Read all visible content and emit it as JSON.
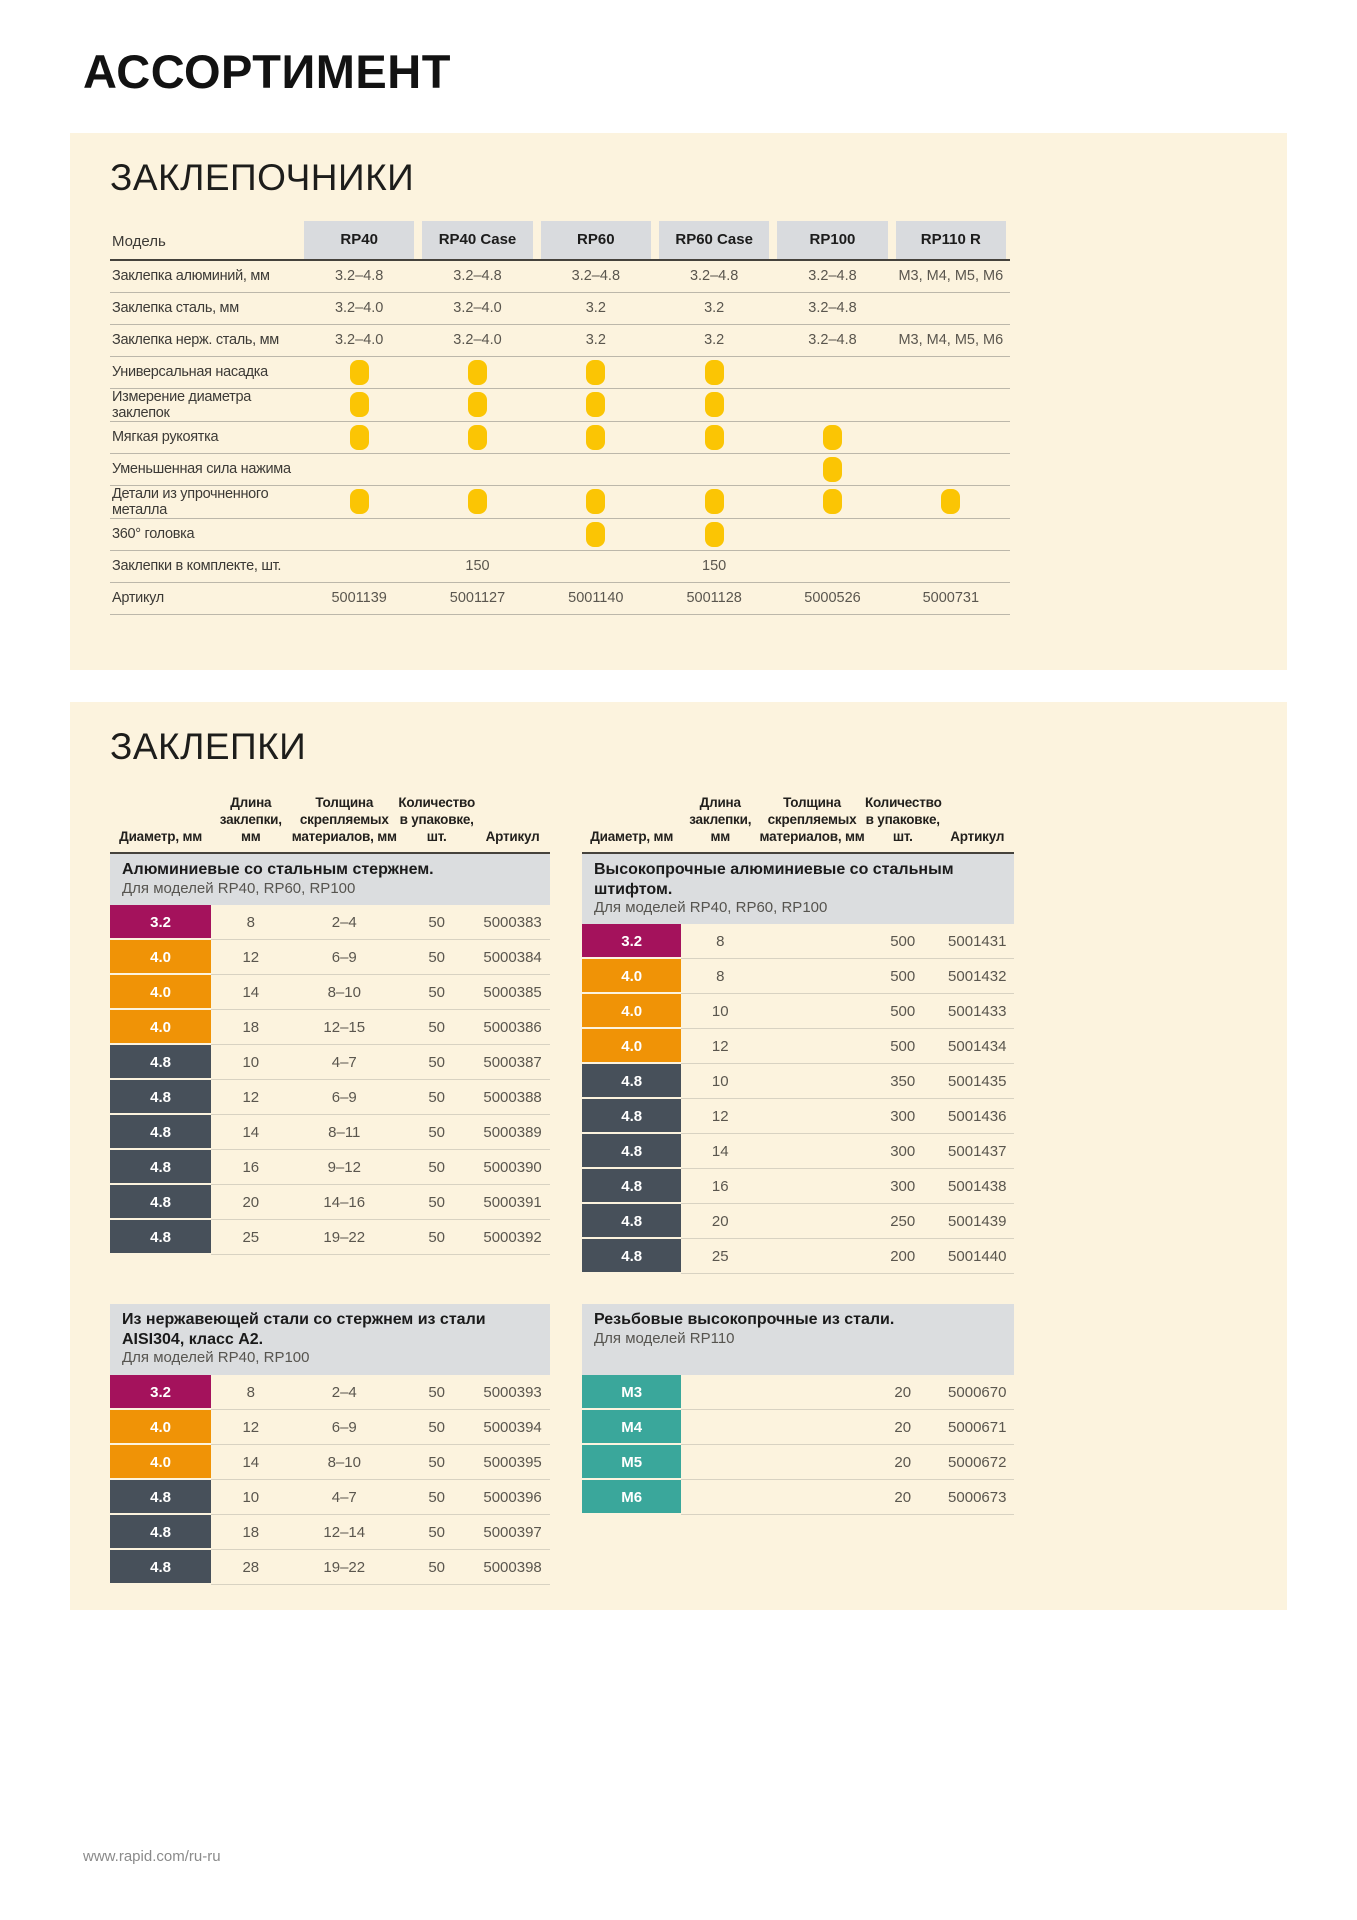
{
  "page": {
    "title": "АССОРТИМЕНТ",
    "footer_link": "www.rapid.com/ru-ru"
  },
  "colors": {
    "panel_bg": "#FCF3DE",
    "model_chip_bg": "#D9DBDE",
    "section_bar_bg": "#DBDDDF",
    "dot_yellow": "#FBC504",
    "diameter_3_2": "#A4125C",
    "diameter_4_0": "#F09306",
    "diameter_4_8": "#47505A",
    "diameter_m": "#3AA79B"
  },
  "riveters": {
    "section_title": "ЗАКЛЕПОЧНИКИ",
    "model_column_label": "Модель",
    "models": [
      "RP40",
      "RP40 Case",
      "RP60",
      "RP60 Case",
      "RP100",
      "RP110 R"
    ],
    "rows": [
      {
        "label": "Заклепка алюминий, мм",
        "type": "text",
        "values": [
          "3.2–4.8",
          "3.2–4.8",
          "3.2–4.8",
          "3.2–4.8",
          "3.2–4.8",
          "M3, M4, M5, M6"
        ]
      },
      {
        "label": "Заклепка сталь, мм",
        "type": "text",
        "values": [
          "3.2–4.0",
          "3.2–4.0",
          "3.2",
          "3.2",
          "3.2–4.8",
          ""
        ]
      },
      {
        "label": "Заклепка нерж. сталь, мм",
        "type": "text",
        "values": [
          "3.2–4.0",
          "3.2–4.0",
          "3.2",
          "3.2",
          "3.2–4.8",
          "M3, M4, M5, M6"
        ]
      },
      {
        "label": "Универсальная насадка",
        "type": "dot",
        "values": [
          true,
          true,
          true,
          true,
          false,
          false
        ]
      },
      {
        "label": "Измерение диаметра заклепок",
        "type": "dot",
        "values": [
          true,
          true,
          true,
          true,
          false,
          false
        ]
      },
      {
        "label": "Мягкая рукоятка",
        "type": "dot",
        "values": [
          true,
          true,
          true,
          true,
          true,
          false
        ]
      },
      {
        "label": "Уменьшенная сила нажима",
        "type": "dot",
        "values": [
          false,
          false,
          false,
          false,
          true,
          false
        ]
      },
      {
        "label": "Детали из упрочненного металла",
        "type": "dot",
        "values": [
          true,
          true,
          true,
          true,
          true,
          true
        ]
      },
      {
        "label": "360° головка",
        "type": "dot",
        "values": [
          false,
          false,
          true,
          true,
          false,
          false
        ]
      },
      {
        "label": "Заклепки в комплекте, шт.",
        "type": "text",
        "values": [
          "",
          "150",
          "",
          "150",
          "",
          ""
        ]
      },
      {
        "label": "Артикул",
        "type": "text",
        "values": [
          "5001139",
          "5001127",
          "5001140",
          "5001128",
          "5000526",
          "5000731"
        ]
      }
    ]
  },
  "rivets": {
    "section_title": "ЗАКЛЕПКИ",
    "column_headers": [
      "Диаметр, мм",
      "Длина\nзаклепки, мм",
      "Толщина\nскрепляемых\nматериалов, мм",
      "Количество\nв упаковке, шт.",
      "Артикул"
    ],
    "tables": [
      {
        "title": "Алюминиевые со стальным стержнем.",
        "subtitle": "Для моделей RP40, RP60, RP100",
        "show_headers": true,
        "rows": [
          {
            "diameter": "3.2",
            "color": "d32",
            "length": "8",
            "thickness": "2–4",
            "qty": "50",
            "sku": "5000383"
          },
          {
            "diameter": "4.0",
            "color": "d40",
            "length": "12",
            "thickness": "6–9",
            "qty": "50",
            "sku": "5000384"
          },
          {
            "diameter": "4.0",
            "color": "d40",
            "length": "14",
            "thickness": "8–10",
            "qty": "50",
            "sku": "5000385"
          },
          {
            "diameter": "4.0",
            "color": "d40",
            "length": "18",
            "thickness": "12–15",
            "qty": "50",
            "sku": "5000386"
          },
          {
            "diameter": "4.8",
            "color": "d48",
            "length": "10",
            "thickness": "4–7",
            "qty": "50",
            "sku": "5000387"
          },
          {
            "diameter": "4.8",
            "color": "d48",
            "length": "12",
            "thickness": "6–9",
            "qty": "50",
            "sku": "5000388"
          },
          {
            "diameter": "4.8",
            "color": "d48",
            "length": "14",
            "thickness": "8–11",
            "qty": "50",
            "sku": "5000389"
          },
          {
            "diameter": "4.8",
            "color": "d48",
            "length": "16",
            "thickness": "9–12",
            "qty": "50",
            "sku": "5000390"
          },
          {
            "diameter": "4.8",
            "color": "d48",
            "length": "20",
            "thickness": "14–16",
            "qty": "50",
            "sku": "5000391"
          },
          {
            "diameter": "4.8",
            "color": "d48",
            "length": "25",
            "thickness": "19–22",
            "qty": "50",
            "sku": "5000392"
          }
        ]
      },
      {
        "title": "Высокопрочные алюминиевые со стальным штифтом.",
        "subtitle": "Для моделей RP40, RP60, RP100",
        "show_headers": true,
        "rows": [
          {
            "diameter": "3.2",
            "color": "d32",
            "length": "8",
            "thickness": "",
            "qty": "500",
            "sku": "5001431"
          },
          {
            "diameter": "4.0",
            "color": "d40",
            "length": "8",
            "thickness": "",
            "qty": "500",
            "sku": "5001432"
          },
          {
            "diameter": "4.0",
            "color": "d40",
            "length": "10",
            "thickness": "",
            "qty": "500",
            "sku": "5001433"
          },
          {
            "diameter": "4.0",
            "color": "d40",
            "length": "12",
            "thickness": "",
            "qty": "500",
            "sku": "5001434"
          },
          {
            "diameter": "4.8",
            "color": "d48",
            "length": "10",
            "thickness": "",
            "qty": "350",
            "sku": "5001435"
          },
          {
            "diameter": "4.8",
            "color": "d48",
            "length": "12",
            "thickness": "",
            "qty": "300",
            "sku": "5001436"
          },
          {
            "diameter": "4.8",
            "color": "d48",
            "length": "14",
            "thickness": "",
            "qty": "300",
            "sku": "5001437"
          },
          {
            "diameter": "4.8",
            "color": "d48",
            "length": "16",
            "thickness": "",
            "qty": "300",
            "sku": "5001438"
          },
          {
            "diameter": "4.8",
            "color": "d48",
            "length": "20",
            "thickness": "",
            "qty": "250",
            "sku": "5001439"
          },
          {
            "diameter": "4.8",
            "color": "d48",
            "length": "25",
            "thickness": "",
            "qty": "200",
            "sku": "5001440"
          }
        ]
      },
      {
        "title": "Из нержавеющей стали со стержнем из стали AISI304, класс А2.",
        "subtitle": "Для моделей RP40, RP100",
        "show_headers": false,
        "rows": [
          {
            "diameter": "3.2",
            "color": "d32",
            "length": "8",
            "thickness": "2–4",
            "qty": "50",
            "sku": "5000393"
          },
          {
            "diameter": "4.0",
            "color": "d40",
            "length": "12",
            "thickness": "6–9",
            "qty": "50",
            "sku": "5000394"
          },
          {
            "diameter": "4.0",
            "color": "d40",
            "length": "14",
            "thickness": "8–10",
            "qty": "50",
            "sku": "5000395"
          },
          {
            "diameter": "4.8",
            "color": "d48",
            "length": "10",
            "thickness": "4–7",
            "qty": "50",
            "sku": "5000396"
          },
          {
            "diameter": "4.8",
            "color": "d48",
            "length": "18",
            "thickness": "12–14",
            "qty": "50",
            "sku": "5000397"
          },
          {
            "diameter": "4.8",
            "color": "d48",
            "length": "28",
            "thickness": "19–22",
            "qty": "50",
            "sku": "5000398"
          }
        ]
      },
      {
        "title": "Резьбовые высокопрочные из стали.",
        "subtitle": "Для моделей RP110",
        "show_headers": false,
        "rows": [
          {
            "diameter": "M3",
            "color": "dm",
            "length": "",
            "thickness": "",
            "qty": "20",
            "sku": "5000670"
          },
          {
            "diameter": "M4",
            "color": "dm",
            "length": "",
            "thickness": "",
            "qty": "20",
            "sku": "5000671"
          },
          {
            "diameter": "M5",
            "color": "dm",
            "length": "",
            "thickness": "",
            "qty": "20",
            "sku": "5000672"
          },
          {
            "diameter": "M6",
            "color": "dm",
            "length": "",
            "thickness": "",
            "qty": "20",
            "sku": "5000673"
          }
        ]
      }
    ]
  }
}
